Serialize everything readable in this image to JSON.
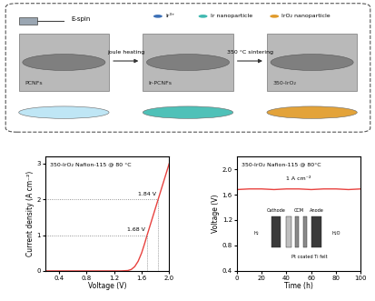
{
  "diagram": {
    "espin_label": "E-spin",
    "legend": [
      {
        "label": "Ir³⁺",
        "color": "#3b6fb6"
      },
      {
        "label": "Ir nanoparticle",
        "color": "#3fb8b0"
      },
      {
        "label": "IrO₂ nanoparticle",
        "color": "#e09a2a"
      }
    ],
    "panels": [
      {
        "label": "PCNFs",
        "fiber_color": "#bfe6f5"
      },
      {
        "label": "Ir-PCNFs",
        "fiber_color": "#4fc1b8"
      },
      {
        "label": "350-IrO₂",
        "fiber_color": "#e3a33a"
      }
    ],
    "steps": [
      "joule heating",
      "350 °C sintering"
    ]
  },
  "chart_data": [
    {
      "type": "line",
      "title": "350-IrO₂ Nafion-115 @ 80 °C",
      "x_label": "Voltage (V)",
      "y_label": "Current density (A cm⁻²)",
      "x": [
        0.2,
        0.6,
        1.0,
        1.3,
        1.4,
        1.45,
        1.5,
        1.55,
        1.6,
        1.64,
        1.68,
        1.72,
        1.76,
        1.8,
        1.84,
        1.88,
        1.92,
        1.96,
        2.0
      ],
      "values": [
        0,
        0,
        0,
        0,
        0.01,
        0.04,
        0.12,
        0.27,
        0.5,
        0.74,
        1.0,
        1.25,
        1.5,
        1.75,
        2.0,
        2.25,
        2.5,
        2.75,
        3.0
      ],
      "color": "#e8423f",
      "xlim": [
        0.2,
        2.0
      ],
      "xticks": [
        0.4,
        0.8,
        1.2,
        1.6,
        2.0
      ],
      "ylim": [
        0,
        3.2
      ],
      "yticks": [
        0,
        1,
        2,
        3
      ],
      "annotations": [
        {
          "text": "1.68 V",
          "x": 1.68,
          "y": 1
        },
        {
          "text": "1.84 V",
          "x": 1.84,
          "y": 2
        }
      ]
    },
    {
      "type": "line",
      "title": "350-IrO₂ Nafion-115 @ 80°C",
      "x_label": "Time (h)",
      "y_label": "Voltage (V)",
      "x": [
        0,
        10,
        20,
        30,
        40,
        50,
        60,
        70,
        80,
        90,
        100
      ],
      "values": [
        1.68,
        1.69,
        1.69,
        1.68,
        1.69,
        1.69,
        1.68,
        1.69,
        1.69,
        1.68,
        1.69
      ],
      "color": "#e8423f",
      "xlim": [
        0,
        100
      ],
      "xticks": [
        0,
        20,
        40,
        60,
        80,
        100
      ],
      "ylim": [
        0.4,
        2.2
      ],
      "yticks": [
        0.4,
        0.8,
        1.2,
        1.6,
        2.0
      ],
      "annotations": [
        {
          "text": "1 A cm⁻²"
        }
      ],
      "inset_labels": [
        "Cathode",
        "CCM",
        "Anode",
        "H₂",
        "H₂O",
        "Pt coated Ti felt"
      ]
    }
  ]
}
